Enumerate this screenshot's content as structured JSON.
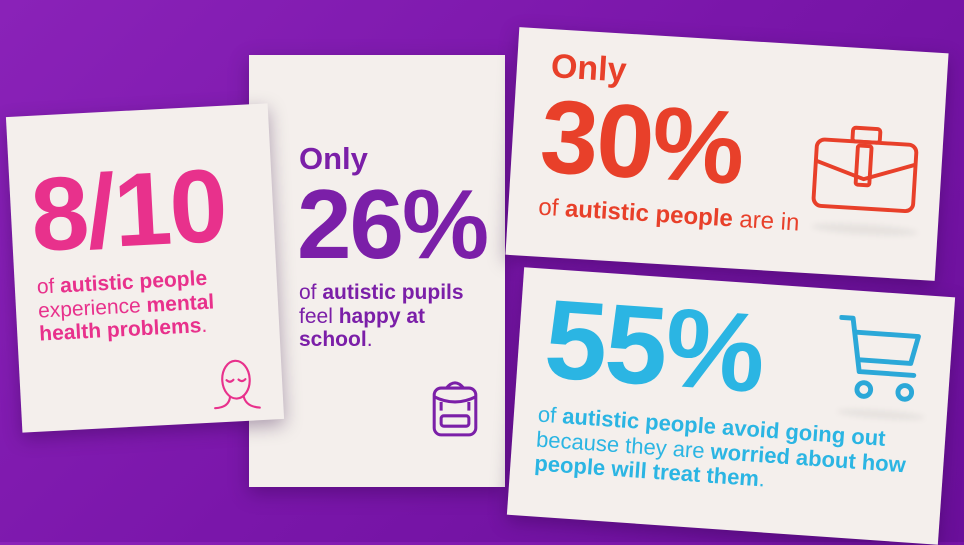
{
  "colors": {
    "background": "#7a16aa",
    "card": "#f4efec",
    "pink": "#e8318c",
    "purple": "#7b1fa8",
    "red": "#e8402a",
    "blue": "#2bb5e3"
  },
  "cards": [
    {
      "stat": "8/10",
      "parts": [
        "of ",
        "autistic people",
        " experience ",
        "mental health problems",
        "."
      ],
      "icon": "face-icon"
    },
    {
      "prefix": "Only",
      "stat": "26%",
      "parts": [
        "of ",
        "autistic pupils",
        " feel ",
        "happy at school",
        "."
      ],
      "icon": "backpack-icon"
    },
    {
      "prefix": "Only",
      "stat": "30%",
      "parts": [
        "of ",
        "autistic people",
        " are in"
      ],
      "icon": "briefcase-icon"
    },
    {
      "stat": "55%",
      "parts": [
        "of ",
        "autistic people avoid going out",
        " because they are ",
        "worried about how people will treat them",
        "."
      ],
      "icon": "shopping-cart-icon"
    }
  ]
}
